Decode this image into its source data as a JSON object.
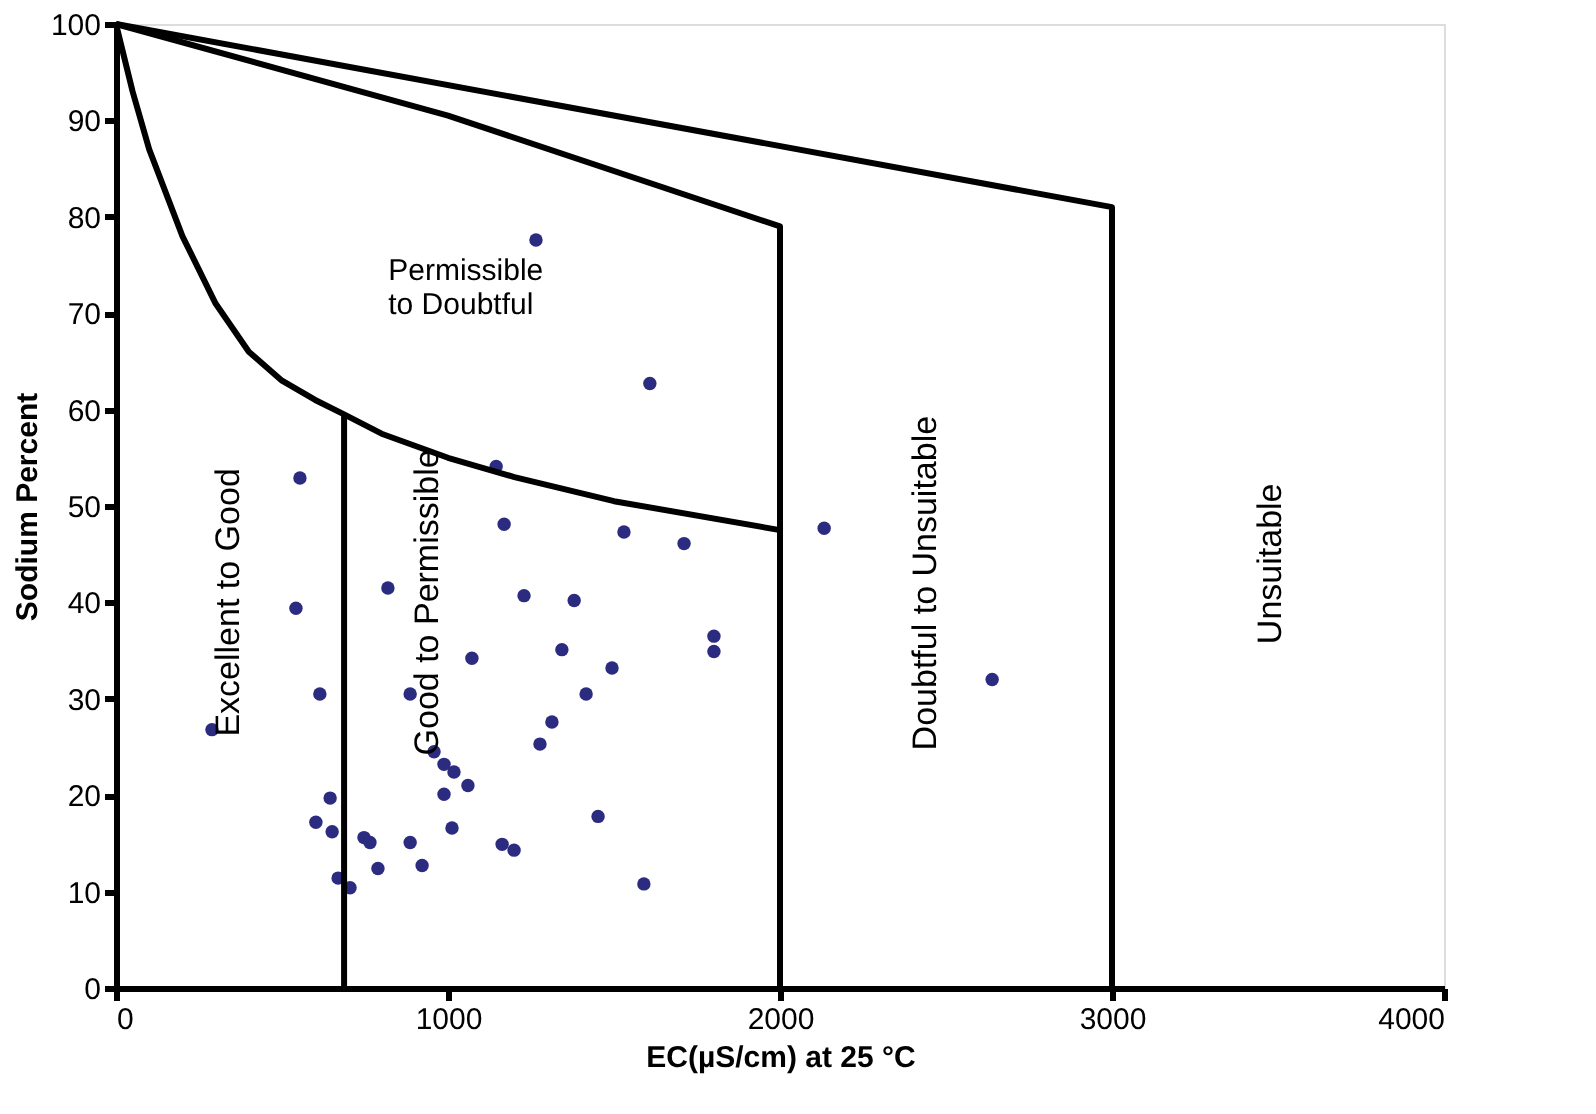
{
  "chart_data": {
    "type": "scatter",
    "xlabel": "EC(µS/cm) at 25 °C",
    "ylabel": "Sodium Percent",
    "xlim": [
      0,
      4000
    ],
    "ylim": [
      0,
      100
    ],
    "xticks": [
      0,
      1000,
      2000,
      3000,
      4000
    ],
    "yticks": [
      0,
      10,
      20,
      30,
      40,
      50,
      60,
      70,
      80,
      90,
      100
    ],
    "series": [
      {
        "color": "#2b2b80",
        "marker": "circle",
        "x": [
          554,
          542,
          614,
          289,
          645,
          602,
          651,
          669,
          705,
          747,
          765,
          789,
          819,
          886,
          886,
          922,
          958,
          988,
          1018,
          988,
          1060,
          1012,
          1072,
          1169,
          1145,
          1229,
          1380,
          1343,
          1416,
          1313,
          1277,
          1452,
          1163,
          1199,
          1494,
          1608,
          1530,
          1711,
          1801,
          1801,
          1590,
          2133,
          2639,
          1265
        ],
        "values": [
          52.9,
          39.4,
          30.5,
          26.8,
          19.7,
          17.2,
          16.2,
          11.4,
          10.4,
          15.6,
          15.1,
          12.4,
          41.5,
          30.5,
          15.1,
          12.7,
          24.5,
          23.2,
          22.4,
          20.1,
          21.0,
          16.6,
          34.2,
          48.1,
          54.1,
          40.7,
          40.2,
          35.1,
          30.5,
          27.6,
          25.3,
          17.8,
          14.9,
          14.3,
          33.2,
          62.7,
          47.3,
          46.1,
          36.5,
          34.9,
          10.8,
          47.7,
          32.0,
          77.6
        ]
      },
      {
        "type": "line",
        "color": "#000000",
        "x": [
          0,
          50,
          100,
          200,
          300,
          400,
          500,
          600,
          687,
          800,
          1000,
          1200,
          1500,
          2000
        ],
        "values": [
          100,
          93,
          87,
          78,
          71,
          66,
          63,
          61,
          59.5,
          57.5,
          55,
          53,
          50.5,
          47.5
        ]
      },
      {
        "type": "line",
        "color": "#000000",
        "x": [
          687,
          687
        ],
        "values": [
          0,
          59.5
        ]
      },
      {
        "type": "line",
        "color": "#000000",
        "x": [
          0,
          1000,
          2000,
          2000
        ],
        "values": [
          100,
          90.5,
          79,
          0
        ]
      },
      {
        "type": "line",
        "color": "#000000",
        "x": [
          0,
          3000,
          3000
        ],
        "values": [
          100,
          81,
          0
        ]
      }
    ],
    "annotations": [
      "Permissible\nto Doubtful",
      "Excellent to Good",
      "Good to Permissible",
      "Doubtful to Unsuitable",
      "Unsuitable"
    ]
  }
}
